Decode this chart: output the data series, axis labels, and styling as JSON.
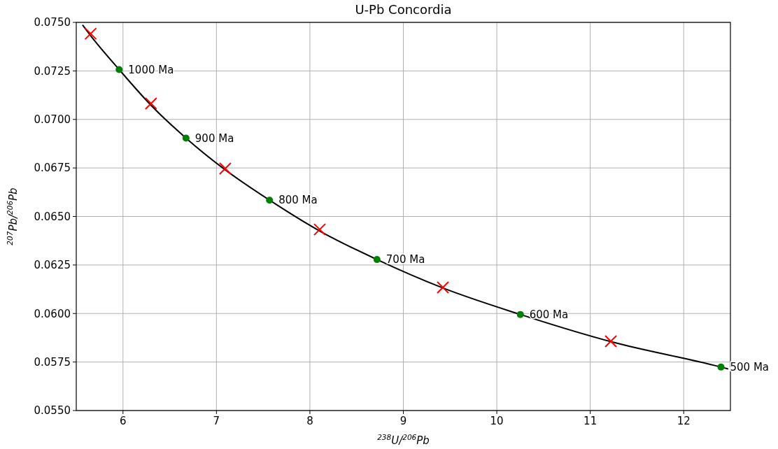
{
  "chart_data": {
    "type": "line",
    "title": "U-Pb Concordia",
    "xlabel": "$^{238}$U/$^{206}$Pb",
    "ylabel": "$^{207}$Pb/$^{206}$Pb",
    "xlim": [
      5.5,
      12.5
    ],
    "xticks": [
      6,
      7,
      8,
      9,
      10,
      11,
      12
    ],
    "ylim": [
      0.055,
      0.075
    ],
    "yticks": [
      {
        "value": 0.055,
        "label": "0.0550"
      },
      {
        "value": 0.0575,
        "label": "0.0575"
      },
      {
        "value": 0.06,
        "label": "0.0600"
      },
      {
        "value": 0.0625,
        "label": "0.0625"
      },
      {
        "value": 0.065,
        "label": "0.0650"
      },
      {
        "value": 0.0675,
        "label": "0.0675"
      },
      {
        "value": 0.07,
        "label": "0.0700"
      },
      {
        "value": 0.0725,
        "label": "0.0725"
      },
      {
        "value": 0.075,
        "label": "0.0750"
      }
    ],
    "grid": true,
    "annotations": [
      {
        "text": "1000 Ma",
        "x": 5.959,
        "y": 0.07257
      },
      {
        "text": "900 Ma",
        "x": 6.674,
        "y": 0.06904
      },
      {
        "text": "800 Ma",
        "x": 7.568,
        "y": 0.06584
      },
      {
        "text": "700 Ma",
        "x": 8.718,
        "y": 0.06278
      },
      {
        "text": "600 Ma",
        "x": 10.252,
        "y": 0.05995
      },
      {
        "text": "500 Ma",
        "x": 12.399,
        "y": 0.05724
      }
    ],
    "series": [
      {
        "color": "#000000",
        "marker": "none",
        "line_style": "solid",
        "x": [
          5.567,
          5.653,
          5.959,
          6.298,
          6.674,
          7.095,
          7.568,
          8.105,
          8.718,
          9.426,
          10.252,
          11.228,
          12.399,
          12.477
        ],
        "values": [
          0.07487,
          0.07432,
          0.07257,
          0.07074,
          0.06904,
          0.0674,
          0.06584,
          0.06425,
          0.06278,
          0.06131,
          0.05995,
          0.05854,
          0.05724,
          0.05714
        ]
      },
      {
        "type": "scatter",
        "color": "#008000",
        "marker": "circle",
        "x": [
          5.959,
          6.674,
          7.568,
          8.718,
          10.252,
          12.399
        ],
        "values": [
          0.07257,
          0.06904,
          0.06584,
          0.06278,
          0.05995,
          0.05724
        ]
      },
      {
        "type": "scatter",
        "color": "#ff0000",
        "marker": "cross",
        "x": [
          5.654,
          6.3,
          7.094,
          8.105,
          9.423,
          11.22
        ],
        "values": [
          0.07442,
          0.07082,
          0.06747,
          0.06433,
          0.06134,
          0.05857
        ]
      }
    ]
  }
}
